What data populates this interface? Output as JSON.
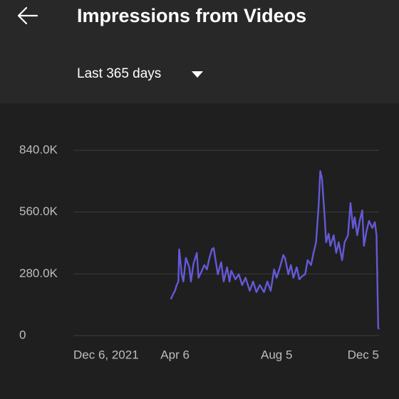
{
  "header": {
    "title": "Impressions from Videos",
    "period": "Last 365 days"
  },
  "chart_data": {
    "type": "line",
    "x": [
      116,
      119,
      121,
      123,
      125,
      126,
      129,
      131,
      134,
      138,
      140,
      143,
      147,
      149,
      153,
      156,
      159,
      162,
      165,
      167,
      170,
      172,
      176,
      179,
      183,
      186,
      188,
      193,
      197,
      201,
      205,
      210,
      214,
      218,
      222,
      227,
      231,
      235,
      239,
      242,
      246,
      250,
      252,
      256,
      259,
      262,
      266,
      269,
      272,
      276,
      279,
      283,
      286,
      289,
      292,
      294,
      296,
      299,
      301,
      304,
      306,
      310,
      313,
      316,
      320,
      323,
      327,
      330,
      333,
      335,
      338,
      341,
      344,
      346,
      349,
      352,
      356,
      359,
      361,
      363,
      364
    ],
    "series": [
      {
        "color": "#6459d6",
        "values": [
          165000,
          190000,
          203000,
          229000,
          245000,
          391000,
          278000,
          245000,
          352000,
          310000,
          245000,
          326000,
          375000,
          262000,
          294000,
          320000,
          300000,
          352000,
          391000,
          397000,
          326000,
          278000,
          333000,
          245000,
          310000,
          245000,
          294000,
          255000,
          278000,
          229000,
          262000,
          203000,
          245000,
          197000,
          229000,
          197000,
          245000,
          203000,
          300000,
          262000,
          310000,
          365000,
          352000,
          278000,
          320000,
          262000,
          310000,
          255000,
          268000,
          278000,
          342000,
          320000,
          375000,
          423000,
          585000,
          746000,
          714000,
          552000,
          423000,
          462000,
          407000,
          455000,
          375000,
          423000,
          342000,
          423000,
          455000,
          601000,
          488000,
          536000,
          455000,
          520000,
          568000,
          407000,
          472000,
          520000,
          488000,
          514000,
          455000,
          36000,
          29000
        ]
      }
    ],
    "xlim": [
      0,
      364
    ],
    "ylim": [
      0,
      840000
    ],
    "xticks": [
      {
        "value": 0,
        "label": "Dec 6, 2021"
      },
      {
        "value": 121,
        "label": "Apr 6"
      },
      {
        "value": 242,
        "label": "Aug 5"
      },
      {
        "value": 364,
        "label": "Dec 5"
      }
    ],
    "yticks": [
      0,
      {
        "value": 280000,
        "label": "280.0K"
      },
      {
        "value": 560000,
        "label": "560.0K"
      },
      {
        "value": 840000,
        "label": "840.0K"
      }
    ],
    "grid": true
  }
}
